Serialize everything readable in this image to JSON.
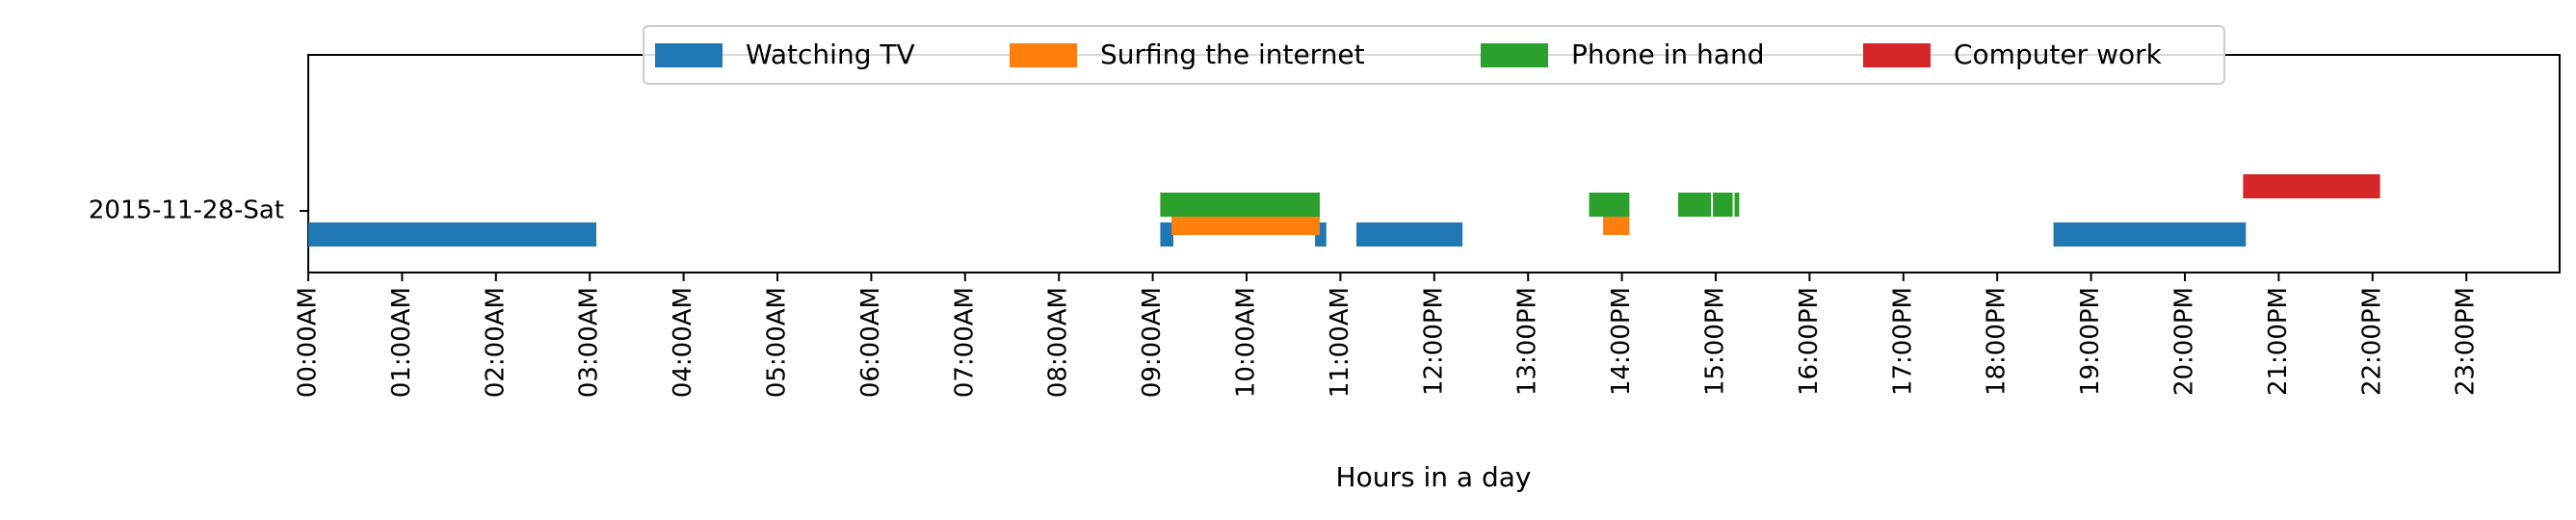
{
  "chart_data": {
    "type": "timeline",
    "title": "",
    "xlabel": "Hours in a day",
    "ylabel": "",
    "xlim": [
      0,
      24
    ],
    "grid": false,
    "legend_position": "top-center",
    "row_label": "2015-11-28-Sat",
    "tick_labels": [
      "00:00AM",
      "01:00AM",
      "02:00AM",
      "03:00AM",
      "04:00AM",
      "05:00AM",
      "06:00AM",
      "07:00AM",
      "08:00AM",
      "09:00AM",
      "10:00AM",
      "11:00AM",
      "12:00PM",
      "13:00PM",
      "14:00PM",
      "15:00PM",
      "16:00PM",
      "17:00PM",
      "18:00PM",
      "19:00PM",
      "20:00PM",
      "21:00PM",
      "22:00PM",
      "23:00PM"
    ],
    "series": [
      {
        "name": "Watching TV",
        "color": "#1f77b4",
        "lane": 0,
        "segments": [
          [
            0.0,
            3.07
          ],
          [
            9.08,
            9.22
          ],
          [
            10.73,
            10.85
          ],
          [
            11.17,
            12.3
          ],
          [
            18.6,
            20.65
          ]
        ]
      },
      {
        "name": "Surfing the internet",
        "color": "#ff7f0e",
        "lane": 1,
        "segments": [
          [
            9.2,
            10.78
          ],
          [
            13.8,
            14.08
          ]
        ]
      },
      {
        "name": "Phone in hand",
        "color": "#2ca02c",
        "lane": 2,
        "segments": [
          [
            9.08,
            10.78
          ],
          [
            13.65,
            14.08
          ],
          [
            14.6,
            14.95
          ],
          [
            14.97,
            15.18
          ],
          [
            15.2,
            15.25
          ]
        ]
      },
      {
        "name": "Computer work",
        "color": "#d62728",
        "lane": 3,
        "segments": [
          [
            20.62,
            22.08
          ]
        ]
      }
    ]
  }
}
